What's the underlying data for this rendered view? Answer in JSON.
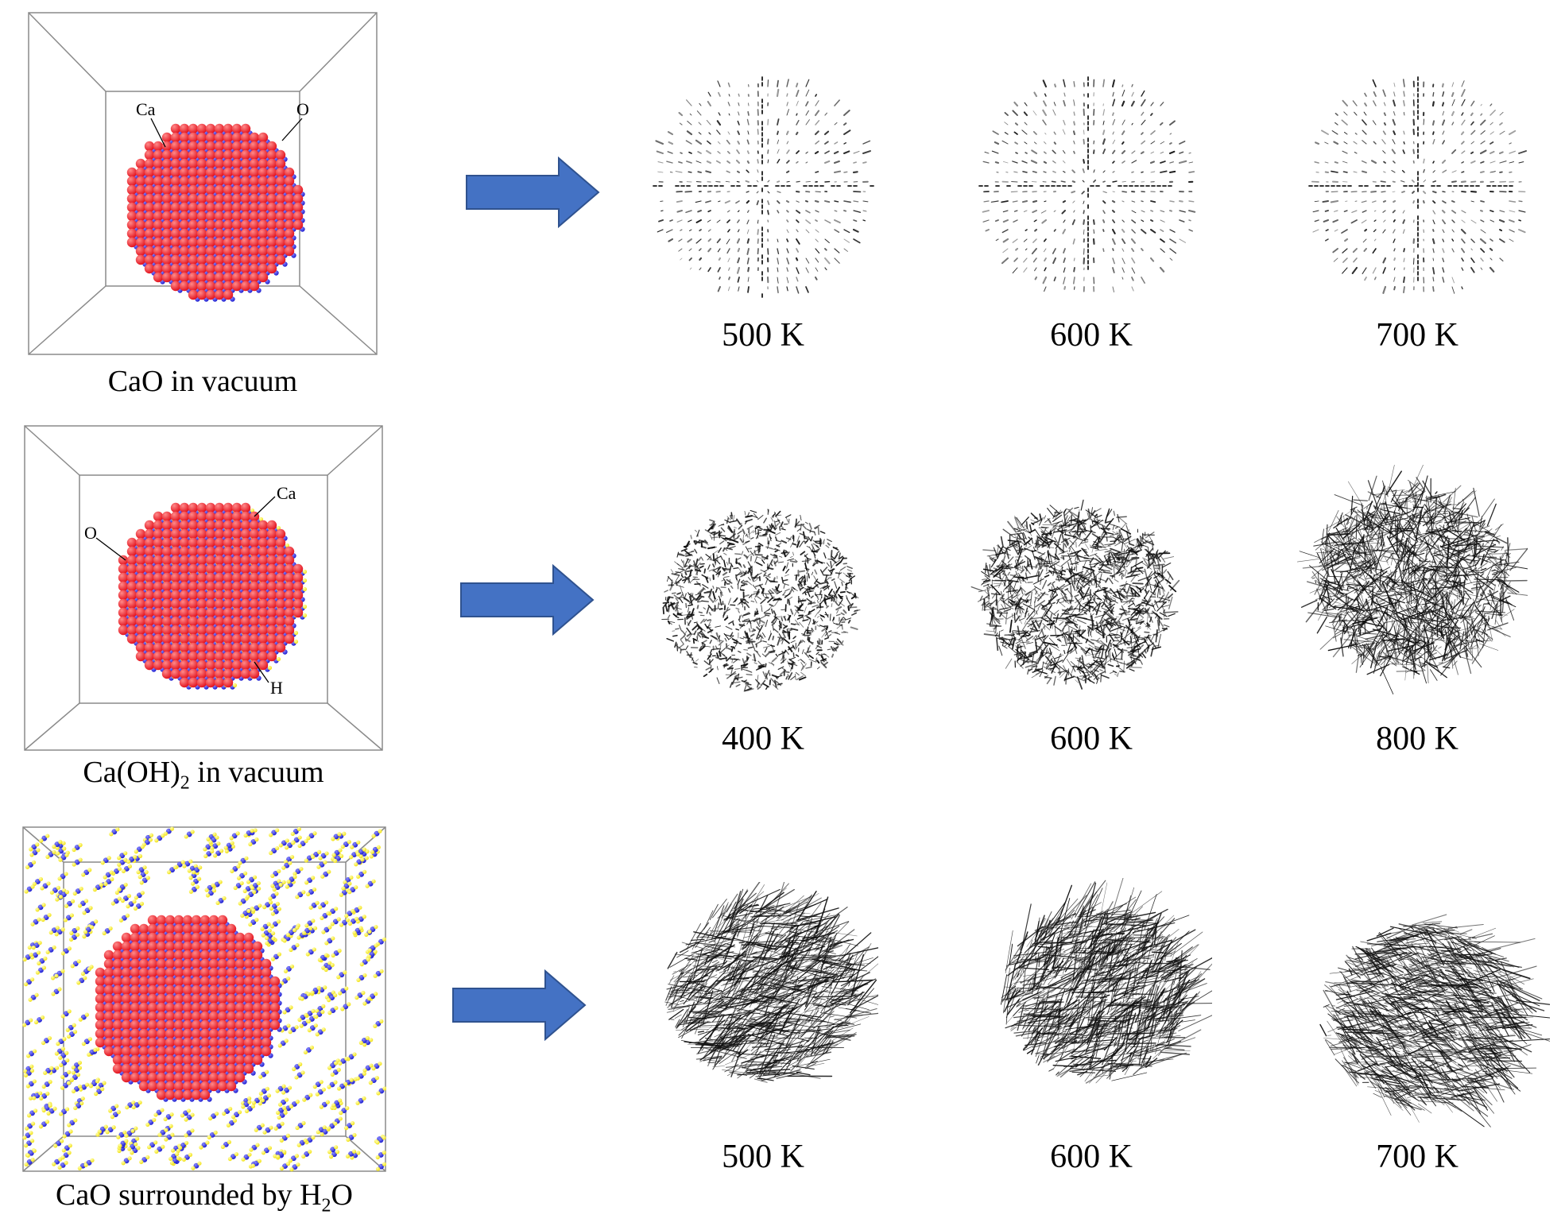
{
  "rows": [
    {
      "caption": "CaO in vacuum",
      "atom_labels": [
        "Ca",
        "O"
      ],
      "temperatures": [
        "500 K",
        "600 K",
        "700 K"
      ]
    },
    {
      "caption_main": "Ca(OH)",
      "caption_sub": "2",
      "caption_tail": " in vacuum",
      "atom_labels": [
        "Ca",
        "O",
        "H"
      ],
      "temperatures": [
        "400 K",
        "600 K",
        "800 K"
      ]
    },
    {
      "caption_main": "CaO surrounded by H",
      "caption_sub": "2",
      "caption_tail": "O",
      "temperatures": [
        "500 K",
        "600 K",
        "700 K"
      ]
    }
  ],
  "colors": {
    "ca_atom": "#e3141f",
    "o_atom": "#1f1fd0",
    "h_atom": "#f2e21a",
    "arrow_fill": "#4472c4",
    "arrow_stroke": "#2f528f"
  }
}
